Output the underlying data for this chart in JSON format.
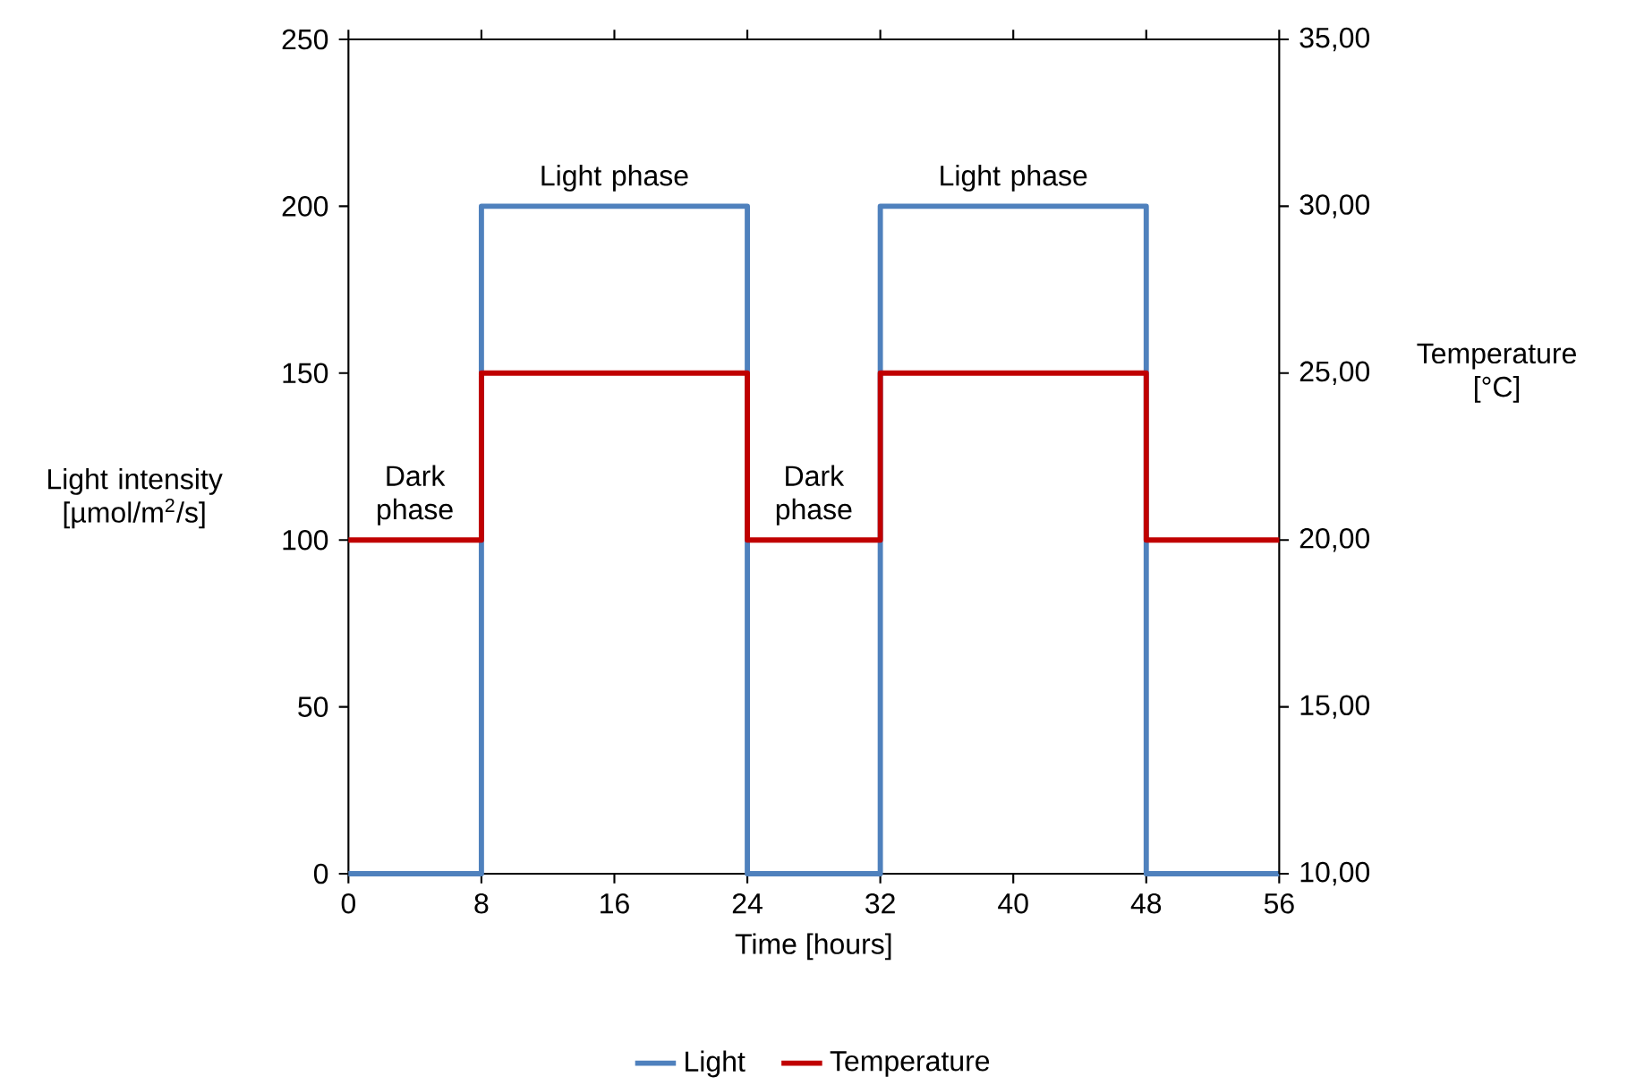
{
  "chart_data": {
    "type": "line",
    "x": [
      0,
      8,
      8,
      24,
      24,
      32,
      32,
      48,
      48,
      56
    ],
    "series": [
      {
        "name": "Light",
        "color": "#4f81bd",
        "values": [
          0,
          0,
          200,
          200,
          0,
          0,
          200,
          200,
          0,
          0
        ]
      },
      {
        "name": "Temperature",
        "color": "#c00000",
        "axis": "y2",
        "values": [
          20,
          20,
          25,
          25,
          20,
          20,
          25,
          25,
          20,
          20
        ]
      }
    ],
    "xlabel": "Time [hours]",
    "ylabel": "Light intensity [µmol/m$^{2}$/s]",
    "y2label": "Temperature [°C]",
    "xlim": [
      0,
      56
    ],
    "xticks": [
      0,
      8,
      16,
      24,
      32,
      40,
      48,
      56
    ],
    "ylim": [
      0,
      250
    ],
    "yticks": [
      0,
      50,
      100,
      150,
      200,
      250
    ],
    "y2lim": [
      10,
      35
    ],
    "y2ticks": [
      {
        "value": 10,
        "label": "10,00"
      },
      {
        "value": 15,
        "label": "15,00"
      },
      {
        "value": 20,
        "label": "20,00"
      },
      {
        "value": 25,
        "label": "25,00"
      },
      {
        "value": 30,
        "label": "30,00"
      },
      {
        "value": 35,
        "label": "35,00"
      }
    ],
    "annotations": [
      "Dark phase",
      "Light phase",
      "Dark phase",
      "Light phase"
    ],
    "legend": "bottom",
    "grid": false,
    "marker": "none",
    "line_style": "solid"
  }
}
